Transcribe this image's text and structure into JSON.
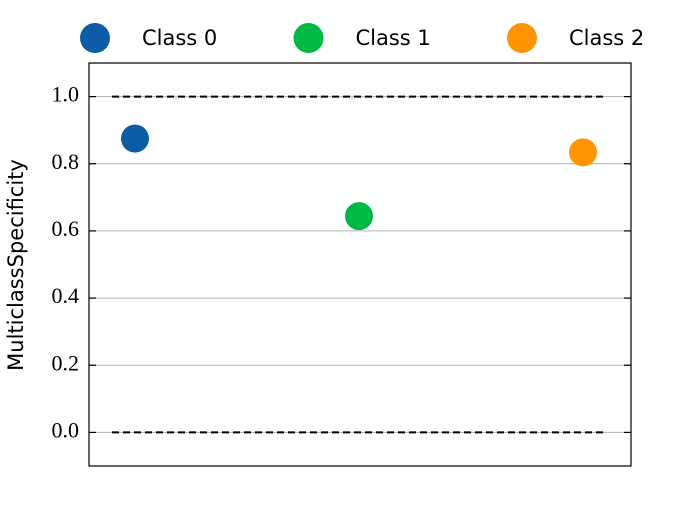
{
  "chart_data": {
    "type": "scatter",
    "y_label": "MulticlassSpecificity",
    "series": [
      {
        "name": "Class 0",
        "color": "#0c5da5",
        "values": [
          0.875
        ]
      },
      {
        "name": "Class 1",
        "color": "#00b945",
        "values": [
          0.644
        ]
      },
      {
        "name": "Class 2",
        "color": "#ff9500",
        "values": [
          0.834
        ]
      }
    ],
    "hlines": [
      0,
      1
    ],
    "ylim": [
      -0.1,
      1.1
    ],
    "yticks": [
      {
        "value": 0,
        "label": "0.0"
      },
      0.2,
      0.4,
      0.6,
      0.8,
      {
        "value": 1,
        "label": "1.0"
      }
    ],
    "grid": true,
    "legend": "top"
  }
}
